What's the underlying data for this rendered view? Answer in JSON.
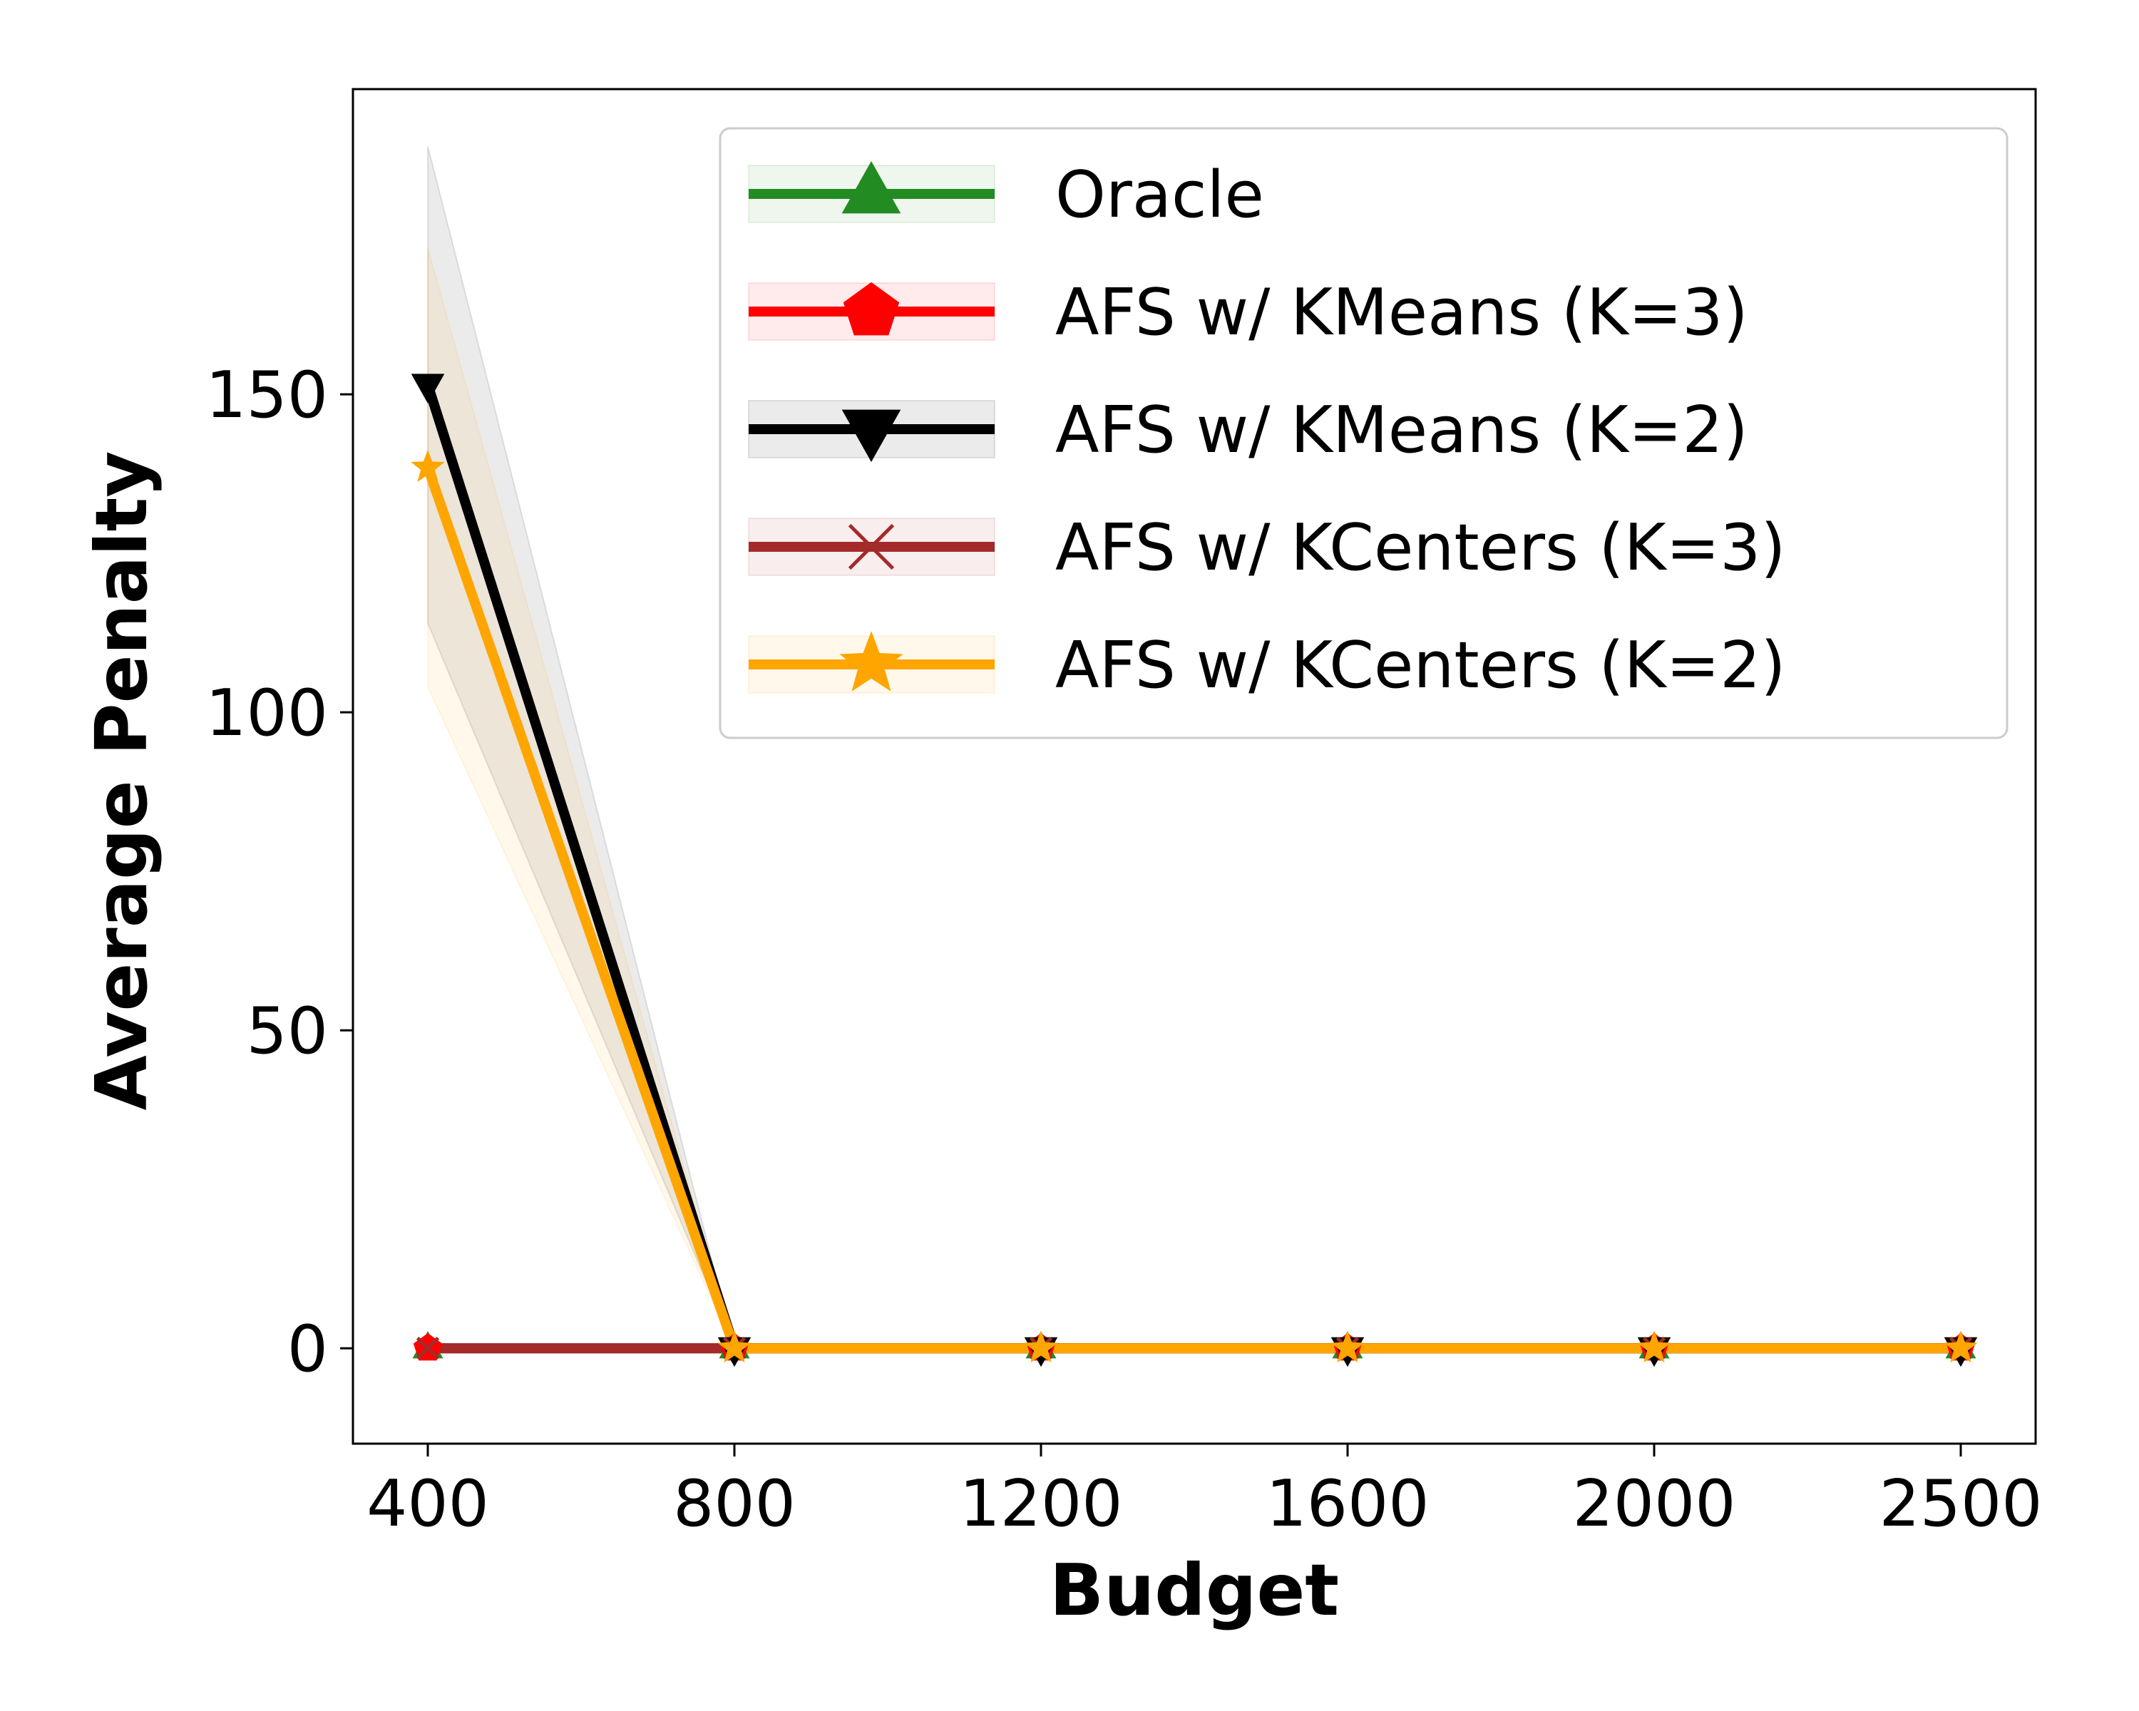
{
  "chart_data": {
    "type": "line",
    "title": "",
    "xlabel": "Budget",
    "ylabel": "Average Penalty",
    "x": [
      "400",
      "800",
      "1200",
      "1600",
      "2000",
      "2500"
    ],
    "ylim": [
      -15,
      198
    ],
    "yticks": [
      0,
      50,
      100,
      150
    ],
    "grid": false,
    "legend_position": "top-right",
    "series": [
      {
        "name": "Oracle",
        "color": "#228b22",
        "marker": "triangle-up",
        "values": [
          0,
          0,
          0,
          0,
          0,
          0
        ],
        "lower": [
          0,
          0,
          0,
          0,
          0,
          0
        ],
        "upper": [
          0,
          0,
          0,
          0,
          0,
          0
        ]
      },
      {
        "name": "AFS w/ KMeans (K=3)",
        "color": "#ff0000",
        "marker": "pentagon",
        "values": [
          0,
          0,
          0,
          0,
          0,
          0
        ],
        "lower": [
          0,
          0,
          0,
          0,
          0,
          0
        ],
        "upper": [
          0,
          0,
          0,
          0,
          0,
          0
        ]
      },
      {
        "name": "AFS w/ KMeans (K=2)",
        "color": "#000000",
        "marker": "triangle-down",
        "values": [
          151.5,
          0,
          0,
          0,
          0,
          0
        ],
        "lower": [
          114,
          0,
          0,
          0,
          0,
          0
        ],
        "upper": [
          189,
          0,
          0,
          0,
          0,
          0
        ]
      },
      {
        "name": "AFS w/ KCenters (K=3)",
        "color": "#a52a2a",
        "marker": "x",
        "values": [
          0,
          0,
          0,
          0,
          0,
          0
        ],
        "lower": [
          0,
          0,
          0,
          0,
          0,
          0
        ],
        "upper": [
          0,
          0,
          0,
          0,
          0,
          0
        ]
      },
      {
        "name": "AFS w/ KCenters (K=2)",
        "color": "#ffa500",
        "marker": "star",
        "values": [
          138.5,
          0,
          0,
          0,
          0,
          0
        ],
        "lower": [
          104,
          0,
          0,
          0,
          0,
          0
        ],
        "upper": [
          173,
          0,
          0,
          0,
          0,
          0
        ]
      }
    ]
  }
}
